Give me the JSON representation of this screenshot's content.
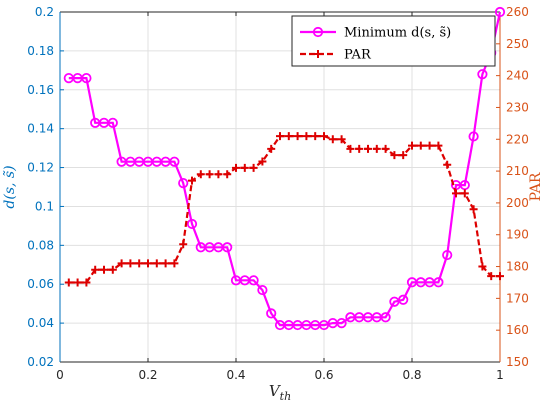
{
  "chart_data": {
    "type": "line",
    "xlabel": "V_th",
    "xlim": [
      0,
      1
    ],
    "xticks": [
      "0",
      "0.2",
      "0.4",
      "0.6",
      "0.8",
      "1"
    ],
    "left_axis": {
      "label": "d(s, s̃)",
      "ylim": [
        0.02,
        0.2
      ],
      "ticks": [
        "0.02",
        "0.04",
        "0.06",
        "0.08",
        "0.1",
        "0.12",
        "0.14",
        "0.16",
        "0.18",
        "0.2"
      ],
      "color": "#0072BD"
    },
    "right_axis": {
      "label": "PAR",
      "ylim": [
        150,
        260
      ],
      "ticks": [
        "150",
        "160",
        "170",
        "180",
        "190",
        "200",
        "210",
        "220",
        "230",
        "240",
        "250",
        "260"
      ],
      "color": "#D95319"
    },
    "grid": true,
    "legend_position": "top-right",
    "series": [
      {
        "name": "Minimum d(s, s̃)",
        "axis": "left",
        "color": "#FF00FF",
        "marker": "circle",
        "line": "solid",
        "x": [
          0.02,
          0.04,
          0.06,
          0.08,
          0.1,
          0.12,
          0.14,
          0.16,
          0.18,
          0.2,
          0.22,
          0.24,
          0.26,
          0.28,
          0.3,
          0.32,
          0.34,
          0.36,
          0.38,
          0.4,
          0.42,
          0.44,
          0.46,
          0.48,
          0.5,
          0.52,
          0.54,
          0.56,
          0.58,
          0.6,
          0.62,
          0.64,
          0.66,
          0.68,
          0.7,
          0.72,
          0.74,
          0.76,
          0.78,
          0.8,
          0.82,
          0.84,
          0.86,
          0.88,
          0.9,
          0.92,
          0.94,
          0.96,
          0.98,
          1.0
        ],
        "y": [
          0.166,
          0.166,
          0.166,
          0.143,
          0.143,
          0.143,
          0.123,
          0.123,
          0.123,
          0.123,
          0.123,
          0.123,
          0.123,
          0.112,
          0.091,
          0.079,
          0.079,
          0.079,
          0.079,
          0.062,
          0.062,
          0.062,
          0.057,
          0.045,
          0.039,
          0.039,
          0.039,
          0.039,
          0.039,
          0.039,
          0.04,
          0.04,
          0.043,
          0.043,
          0.043,
          0.043,
          0.043,
          0.051,
          0.052,
          0.061,
          0.061,
          0.061,
          0.061,
          0.075,
          0.111,
          0.111,
          0.136,
          0.168,
          0.179,
          0.2
        ]
      },
      {
        "name": "PAR",
        "axis": "right",
        "color": "#DD0000",
        "marker": "plus",
        "line": "dashed",
        "x": [
          0.02,
          0.04,
          0.06,
          0.08,
          0.1,
          0.12,
          0.14,
          0.16,
          0.18,
          0.2,
          0.22,
          0.24,
          0.26,
          0.28,
          0.3,
          0.32,
          0.34,
          0.36,
          0.38,
          0.4,
          0.42,
          0.44,
          0.46,
          0.48,
          0.5,
          0.52,
          0.54,
          0.56,
          0.58,
          0.6,
          0.62,
          0.64,
          0.66,
          0.68,
          0.7,
          0.72,
          0.74,
          0.76,
          0.78,
          0.8,
          0.82,
          0.84,
          0.86,
          0.88,
          0.9,
          0.92,
          0.94,
          0.96,
          0.98,
          1.0
        ],
        "y": [
          175,
          175,
          175,
          179,
          179,
          179,
          181,
          181,
          181,
          181,
          181,
          181,
          181,
          187,
          207,
          209,
          209,
          209,
          209,
          211,
          211,
          211,
          213,
          217,
          221,
          221,
          221,
          221,
          221,
          221,
          220,
          220,
          217,
          217,
          217,
          217,
          217,
          215,
          215,
          218,
          218,
          218,
          218,
          212,
          203,
          203,
          198,
          180,
          177,
          177
        ]
      }
    ]
  }
}
